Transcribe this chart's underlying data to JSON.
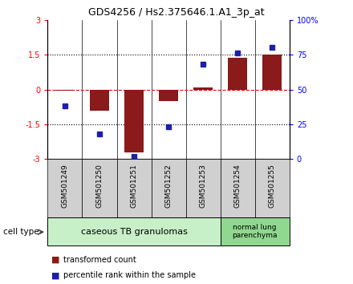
{
  "title": "GDS4256 / Hs2.375646.1.A1_3p_at",
  "samples": [
    "GSM501249",
    "GSM501250",
    "GSM501251",
    "GSM501252",
    "GSM501253",
    "GSM501254",
    "GSM501255"
  ],
  "transformed_count": [
    -0.05,
    -0.9,
    -2.7,
    -0.5,
    0.1,
    1.35,
    1.5
  ],
  "percentile_rank": [
    38,
    18,
    2,
    23,
    68,
    76,
    80
  ],
  "ylim_left": [
    -3,
    3
  ],
  "ylim_right": [
    0,
    100
  ],
  "yticks_left": [
    -3,
    -1.5,
    0,
    1.5,
    3
  ],
  "ytick_labels_left": [
    "-3",
    "-1.5",
    "0",
    "1.5",
    "3"
  ],
  "yticks_right": [
    0,
    25,
    50,
    75,
    100
  ],
  "ytick_labels_right": [
    "0",
    "25",
    "50",
    "75",
    "100%"
  ],
  "bar_color": "#8B1A1A",
  "dot_color": "#1E1EAA",
  "group1_count": 5,
  "group1_label": "caseous TB granulomas",
  "group1_color": "#c8f0c8",
  "group2_count": 2,
  "group2_label": "normal lung\nparenchyma",
  "group2_color": "#90d890",
  "cell_type_label": "cell type",
  "legend_bar_label": "transformed count",
  "legend_dot_label": "percentile rank within the sample",
  "sample_box_color": "#d0d0d0",
  "title_fontsize": 9,
  "tick_fontsize": 7,
  "label_fontsize": 7,
  "group_fontsize": 8
}
